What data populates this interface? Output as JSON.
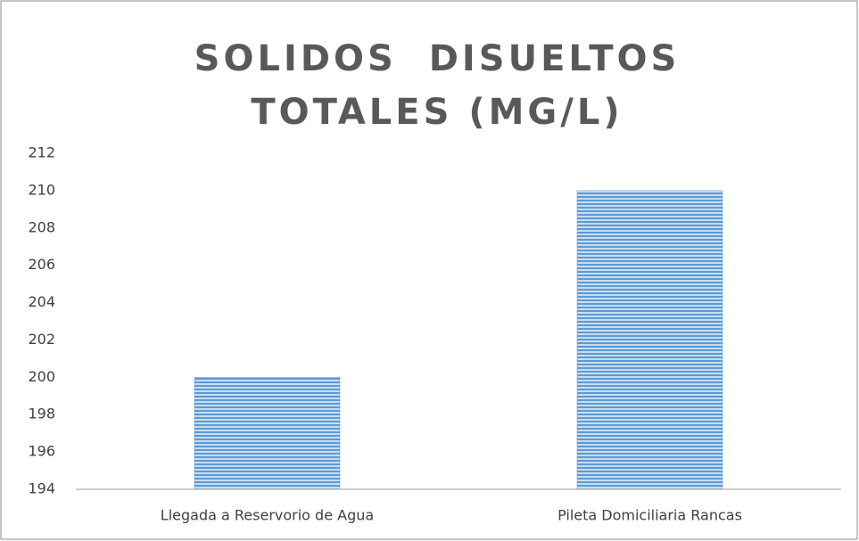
{
  "chart_data": {
    "type": "bar",
    "title": "SOLIDOS  DISUELTOS TOTALES (MG/L)",
    "categories": [
      "Llegada a Reservorio de Agua",
      "Pileta Domiciliaria Rancas"
    ],
    "values": [
      200,
      210
    ],
    "color": "#5b9bd5",
    "ylim": [
      194,
      212
    ],
    "yticks": [
      194,
      196,
      198,
      200,
      202,
      204,
      206,
      208,
      210,
      212
    ],
    "grid": false
  }
}
